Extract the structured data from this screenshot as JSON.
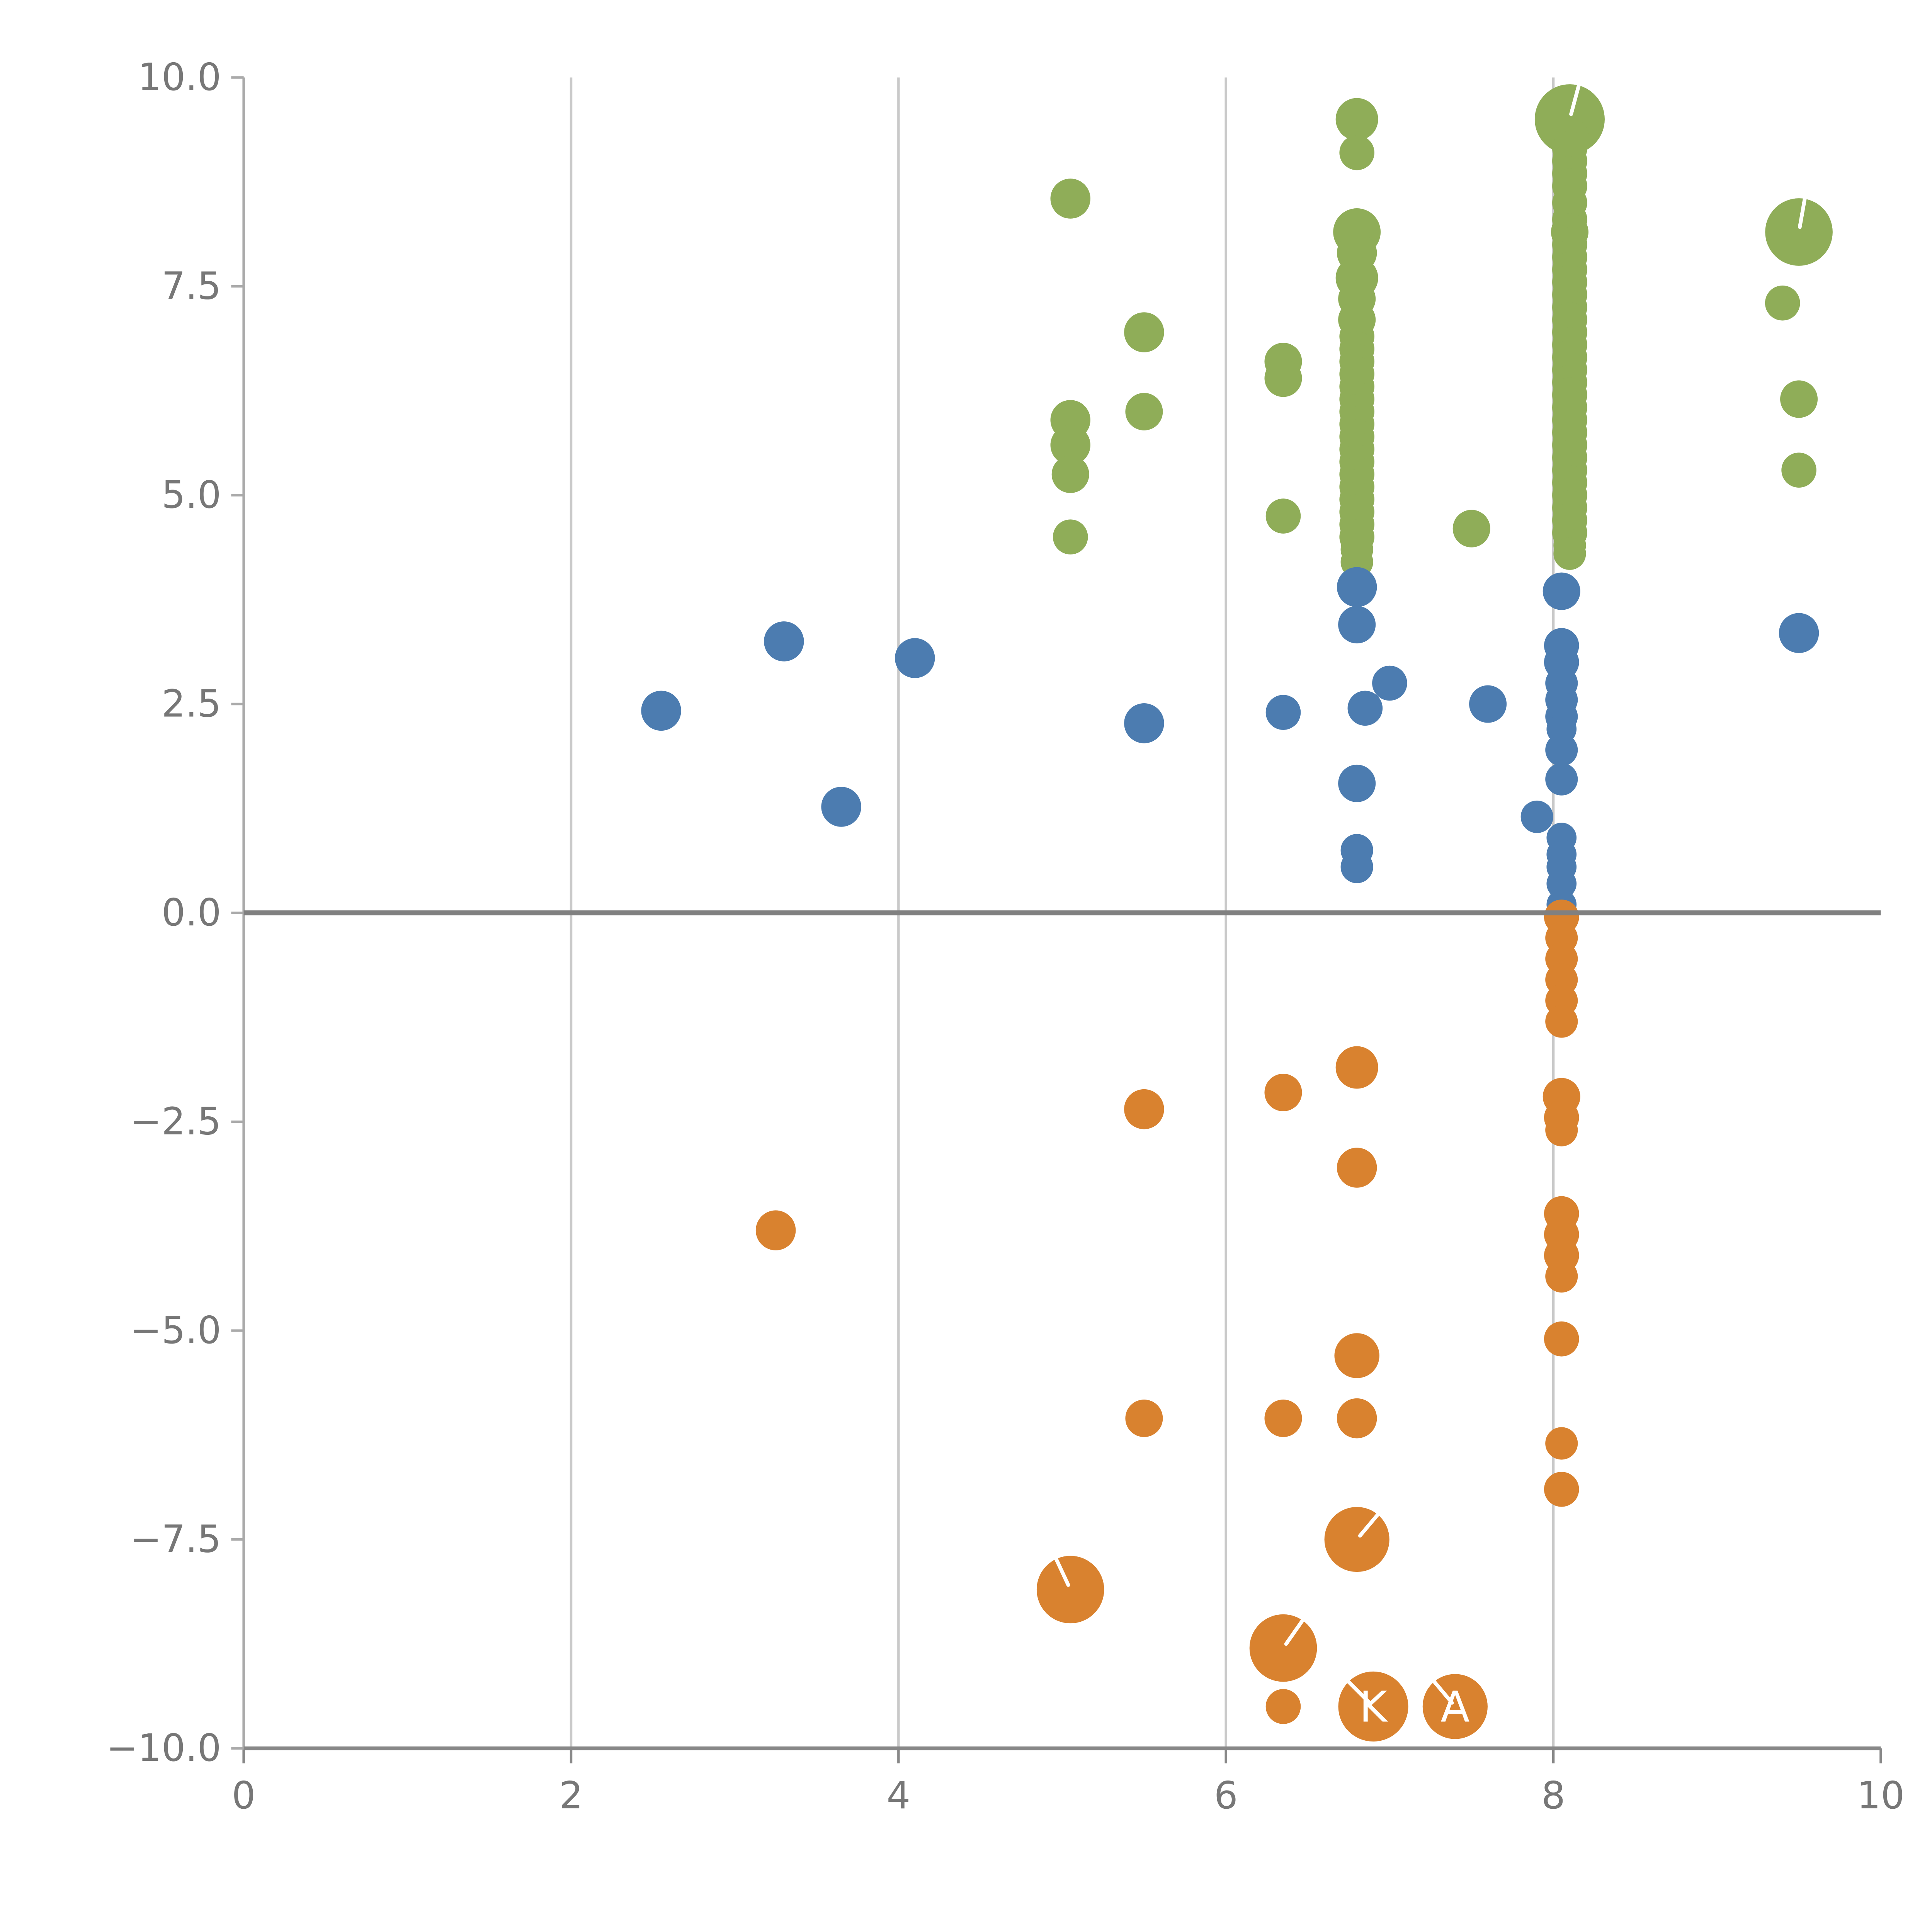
{
  "figure": {
    "background": "#ffffff",
    "axis": {
      "tick_label_color": "#777777",
      "grid_color": "#c9c9c9",
      "spine_color": "#aaaaaa",
      "bottom_spine_color": "#888888",
      "zero_line_color": "#808080"
    }
  },
  "chart_data": {
    "type": "scatter",
    "title": "",
    "xlabel": "",
    "ylabel": "",
    "xlim": [
      0,
      10
    ],
    "ylim": [
      -10,
      10
    ],
    "x_ticks": [
      0,
      2,
      4,
      6,
      8,
      10
    ],
    "x_tick_labels": [
      "0",
      "2",
      "4",
      "6",
      "8",
      "10"
    ],
    "y_ticks": [
      10,
      7.5,
      5,
      2.5,
      0,
      -2.5,
      -5,
      -7.5,
      -10
    ],
    "y_tick_labels": [
      "10.0",
      "7.5",
      "5.0",
      "2.5",
      "0.0",
      "−2.5",
      "−5.0",
      "−7.5",
      "−10.0"
    ],
    "grid_x": [
      2,
      4,
      6,
      8
    ],
    "zero_line_y": 0,
    "legend": "none",
    "series": [
      {
        "name": "green",
        "color": "#8fad58",
        "points": [
          [
            5.05,
            8.55,
            16
          ],
          [
            5.5,
            6.95,
            16
          ],
          [
            5.5,
            6.0,
            15
          ],
          [
            5.05,
            5.9,
            16
          ],
          [
            5.05,
            5.6,
            16
          ],
          [
            5.05,
            5.25,
            15
          ],
          [
            5.05,
            4.5,
            14
          ],
          [
            6.35,
            6.6,
            15
          ],
          [
            6.35,
            6.4,
            15
          ],
          [
            6.35,
            4.75,
            14
          ],
          [
            7.5,
            4.6,
            15
          ],
          [
            9.5,
            8.15,
            27
          ],
          [
            9.4,
            7.3,
            14
          ],
          [
            9.5,
            6.15,
            15
          ],
          [
            9.5,
            5.3,
            14
          ],
          [
            6.8,
            9.5,
            17
          ],
          [
            6.8,
            9.1,
            14
          ],
          [
            6.8,
            8.15,
            19
          ],
          [
            6.8,
            7.9,
            16
          ],
          [
            6.8,
            7.6,
            17
          ],
          [
            6.8,
            7.35,
            15
          ],
          [
            6.8,
            7.1,
            15
          ],
          [
            6.8,
            6.9,
            14
          ],
          [
            6.8,
            6.75,
            14
          ],
          [
            6.8,
            6.6,
            14
          ],
          [
            6.8,
            6.45,
            14
          ],
          [
            6.8,
            6.3,
            14
          ],
          [
            6.8,
            6.15,
            14
          ],
          [
            6.8,
            6.0,
            14
          ],
          [
            6.8,
            5.85,
            14
          ],
          [
            6.8,
            5.7,
            14
          ],
          [
            6.8,
            5.55,
            14
          ],
          [
            6.8,
            5.4,
            14
          ],
          [
            6.8,
            5.25,
            14
          ],
          [
            6.8,
            5.1,
            14
          ],
          [
            6.8,
            4.95,
            14
          ],
          [
            6.8,
            4.8,
            14
          ],
          [
            6.8,
            4.65,
            14
          ],
          [
            6.8,
            4.5,
            14
          ],
          [
            6.8,
            4.35,
            13
          ],
          [
            6.8,
            4.2,
            13
          ],
          [
            8.1,
            9.5,
            28
          ],
          [
            8.1,
            9.3,
            15
          ],
          [
            8.1,
            9.15,
            14
          ],
          [
            8.1,
            9.0,
            14
          ],
          [
            8.1,
            8.85,
            14
          ],
          [
            8.1,
            8.7,
            14
          ],
          [
            8.1,
            8.5,
            14
          ],
          [
            8.1,
            8.3,
            14
          ],
          [
            8.1,
            8.15,
            15
          ],
          [
            8.1,
            8.0,
            14
          ],
          [
            8.1,
            7.85,
            14
          ],
          [
            8.1,
            7.7,
            14
          ],
          [
            8.1,
            7.55,
            14
          ],
          [
            8.1,
            7.4,
            14
          ],
          [
            8.1,
            7.25,
            14
          ],
          [
            8.1,
            7.1,
            14
          ],
          [
            8.1,
            6.95,
            14
          ],
          [
            8.1,
            6.8,
            14
          ],
          [
            8.1,
            6.65,
            14
          ],
          [
            8.1,
            6.5,
            14
          ],
          [
            8.1,
            6.35,
            14
          ],
          [
            8.1,
            6.2,
            14
          ],
          [
            8.1,
            6.05,
            14
          ],
          [
            8.1,
            5.9,
            14
          ],
          [
            8.1,
            5.75,
            14
          ],
          [
            8.1,
            5.6,
            14
          ],
          [
            8.1,
            5.45,
            14
          ],
          [
            8.1,
            5.3,
            14
          ],
          [
            8.1,
            5.15,
            14
          ],
          [
            8.1,
            5.0,
            14
          ],
          [
            8.1,
            4.85,
            14
          ],
          [
            8.1,
            4.7,
            14
          ],
          [
            8.1,
            4.55,
            14
          ],
          [
            8.1,
            4.4,
            13
          ],
          [
            8.1,
            4.3,
            13
          ]
        ]
      },
      {
        "name": "blue",
        "color": "#4c7cb0",
        "points": [
          [
            2.55,
            2.42,
            16
          ],
          [
            3.3,
            3.25,
            16
          ],
          [
            3.65,
            1.27,
            16
          ],
          [
            4.1,
            3.05,
            16
          ],
          [
            5.5,
            2.27,
            16
          ],
          [
            6.35,
            2.4,
            14
          ],
          [
            6.8,
            3.9,
            16
          ],
          [
            6.8,
            3.45,
            15
          ],
          [
            6.85,
            2.45,
            14
          ],
          [
            7.0,
            2.75,
            14
          ],
          [
            6.8,
            1.55,
            15
          ],
          [
            6.8,
            0.75,
            13
          ],
          [
            6.8,
            0.55,
            13
          ],
          [
            7.6,
            2.5,
            15
          ],
          [
            7.9,
            1.15,
            13
          ],
          [
            9.5,
            3.35,
            16
          ],
          [
            8.05,
            3.85,
            15
          ],
          [
            8.05,
            3.2,
            14
          ],
          [
            8.05,
            3.0,
            14
          ],
          [
            8.05,
            2.75,
            13
          ],
          [
            8.05,
            2.55,
            13
          ],
          [
            8.05,
            2.35,
            13
          ],
          [
            8.05,
            2.2,
            12
          ],
          [
            8.05,
            1.95,
            13
          ],
          [
            8.05,
            1.6,
            13
          ],
          [
            8.05,
            0.9,
            12
          ],
          [
            8.05,
            0.7,
            12
          ],
          [
            8.05,
            0.55,
            12
          ],
          [
            8.05,
            0.35,
            12
          ],
          [
            8.05,
            0.1,
            12
          ]
        ]
      },
      {
        "name": "orange",
        "color": "#d9822f",
        "points": [
          [
            3.25,
            -3.8,
            16
          ],
          [
            5.5,
            -2.35,
            16
          ],
          [
            6.35,
            -2.15,
            15
          ],
          [
            6.8,
            -1.85,
            17
          ],
          [
            6.8,
            -3.05,
            16
          ],
          [
            6.8,
            -5.3,
            18
          ],
          [
            5.5,
            -6.05,
            15
          ],
          [
            6.35,
            -6.05,
            15
          ],
          [
            6.8,
            -6.05,
            16
          ],
          [
            6.8,
            -7.5,
            26
          ],
          [
            5.05,
            -8.1,
            27
          ],
          [
            6.35,
            -8.8,
            27
          ],
          [
            6.35,
            -9.5,
            14
          ],
          [
            6.9,
            -9.5,
            28
          ],
          [
            7.4,
            -9.5,
            26
          ],
          [
            8.05,
            -0.05,
            14
          ],
          [
            8.05,
            -0.3,
            13
          ],
          [
            8.05,
            -0.55,
            13
          ],
          [
            8.05,
            -0.8,
            13
          ],
          [
            8.05,
            -1.05,
            13
          ],
          [
            8.05,
            -1.3,
            13
          ],
          [
            8.05,
            -2.2,
            15
          ],
          [
            8.05,
            -2.45,
            14
          ],
          [
            8.05,
            -2.6,
            13
          ],
          [
            8.05,
            -3.6,
            14
          ],
          [
            8.05,
            -3.85,
            14
          ],
          [
            8.05,
            -4.1,
            14
          ],
          [
            8.05,
            -4.35,
            13
          ],
          [
            8.05,
            -5.1,
            14
          ],
          [
            8.05,
            -6.35,
            13
          ],
          [
            8.05,
            -6.9,
            14
          ]
        ]
      }
    ],
    "white_ticks": [
      {
        "x": 8.1,
        "y": 9.5,
        "angle": 75
      },
      {
        "x": 9.5,
        "y": 8.15,
        "angle": 80
      },
      {
        "x": 6.8,
        "y": -7.5,
        "angle": 50
      },
      {
        "x": 5.05,
        "y": -8.1,
        "angle": 115
      },
      {
        "x": 6.35,
        "y": -8.8,
        "angle": 55
      },
      {
        "x": 6.9,
        "y": -9.5,
        "angle": 135
      },
      {
        "x": 7.4,
        "y": -9.5,
        "angle": 130
      }
    ],
    "annotations": [
      {
        "x": 6.9,
        "y": -9.5,
        "text": "K",
        "color": "#ffffff"
      },
      {
        "x": 7.4,
        "y": -9.5,
        "text": "A",
        "color": "#ffffff"
      }
    ]
  }
}
